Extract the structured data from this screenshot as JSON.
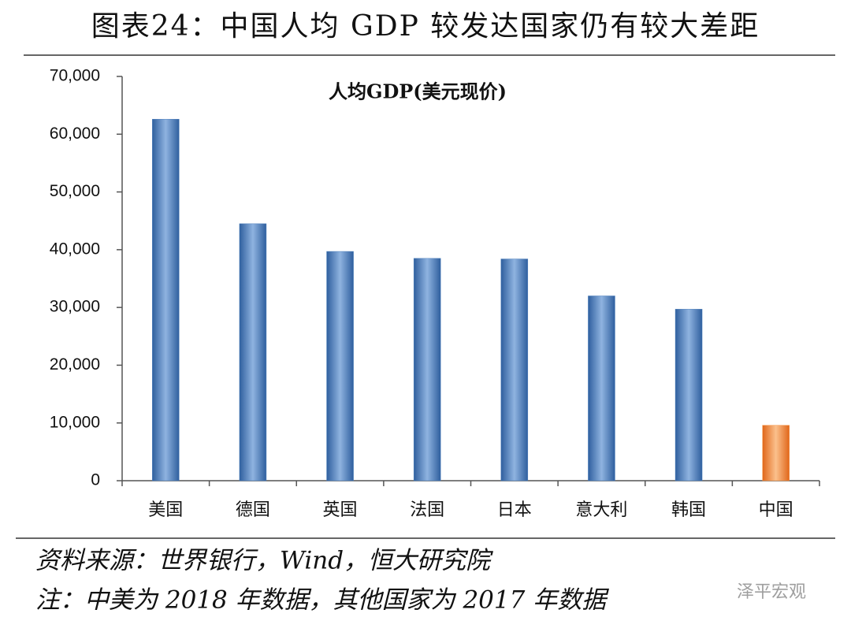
{
  "header": {
    "title": "图表24：中国人均 GDP 较发达国家仍有较大差距"
  },
  "chart_data": {
    "type": "bar",
    "title": "人均GDP(美元现价)",
    "categories": [
      "美国",
      "德国",
      "英国",
      "法国",
      "日本",
      "意大利",
      "韩国",
      "中国"
    ],
    "values": [
      62600,
      44500,
      39700,
      38500,
      38400,
      32000,
      29700,
      9600
    ],
    "colors": [
      "#4f81bd",
      "#4f81bd",
      "#4f81bd",
      "#4f81bd",
      "#4f81bd",
      "#4f81bd",
      "#4f81bd",
      "#f79646"
    ],
    "ylim": [
      0,
      70000
    ],
    "yticks": [
      0,
      {
        "value": 10000,
        "label": "10,000"
      },
      {
        "value": 20000,
        "label": "20,000"
      },
      {
        "value": 30000,
        "label": "30,000"
      },
      {
        "value": 40000,
        "label": "40,000"
      },
      {
        "value": 50000,
        "label": "50,000"
      },
      {
        "value": 60000,
        "label": "60,000"
      },
      {
        "value": 70000,
        "label": "70,000"
      }
    ],
    "grid": false
  },
  "footer": {
    "source": "资料来源：世界银行，Wind，恒大研究院",
    "note": "注：中美为 2018 年数据，其他国家为 2017 年数据",
    "watermark": "泽平宏观"
  }
}
